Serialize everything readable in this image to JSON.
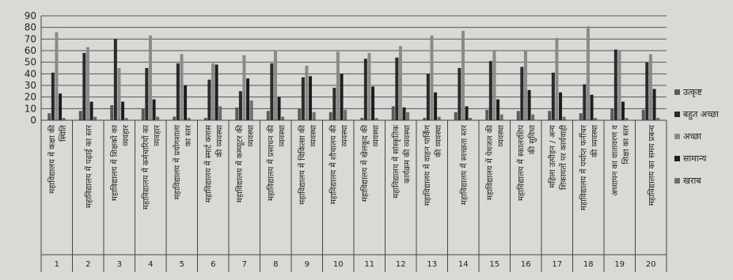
{
  "chart_data": {
    "type": "bar",
    "ylim": [
      0,
      90
    ],
    "yticks": [
      0,
      10,
      20,
      30,
      40,
      50,
      60,
      70,
      80,
      90
    ],
    "grid": true,
    "legend_position": "right",
    "numbers": [
      "1",
      "2",
      "3",
      "4",
      "5",
      "6",
      "7",
      "8",
      "9",
      "10",
      "11",
      "12",
      "13",
      "14",
      "15",
      "16",
      "17",
      "18",
      "19",
      "20"
    ],
    "categories": [
      [
        "महाविद्यालय में कक्षा की",
        "स्थिति"
      ],
      [
        "महाविद्यालय में पढ़ाई का स्तर"
      ],
      [
        "महाविद्यालय में शिक्षकों का",
        "व्यवहार"
      ],
      [
        "महाविद्यालय में कर्मचारियों का",
        "व्यवहार"
      ],
      [
        "महाविद्यालय में प्रयोगशाला",
        "का स्तर"
      ],
      [
        "महाविद्यालय में स्मार्ट क्लास",
        "की व्यवस्था"
      ],
      [
        "महाविद्यालय में कम्प्यूटर की",
        "व्यवस्था"
      ],
      [
        "महाविद्यालय में प्रसाधन की",
        "व्यवस्था"
      ],
      [
        "महाविद्यालय में चिकित्सा की",
        "व्यवस्था"
      ],
      [
        "महाविद्यालय में शौचालय की",
        "व्यवस्था"
      ],
      [
        "महाविद्यालय में खेलकूद की",
        "व्यवस्था"
      ],
      [
        "महाविद्यालय में सांस्कृतिक",
        "कार्यक्रम की व्यवस्था"
      ],
      [
        "महाविद्यालय में वाहन पार्किंग",
        "की व्यवस्था"
      ],
      [
        "महाविद्यालय में स्वच्छता स्तर"
      ],
      [
        "महाविद्यालय में पेयजल की",
        "व्यवस्था"
      ],
      [
        "महाविद्यालय में स्कालरशिप",
        "की सुविधा"
      ],
      [
        "महिला उत्पीड़न / अन्य",
        "शिकायतों पर कार्यवाही"
      ],
      [
        "महाविद्यालय में पर्याप्त फर्नीचर",
        "की व्यवस्था"
      ],
      [
        "अध्यापन का वातावरण व",
        "शिक्षा का स्तर"
      ],
      [
        "महाविद्यालय का समय प्रबन्ध"
      ]
    ],
    "series": [
      {
        "name": "उत्कृष्ट",
        "color": "#5a5a5a",
        "values": [
          6,
          8,
          13,
          10,
          3,
          2,
          11,
          8,
          10,
          7,
          2,
          12,
          2,
          7,
          9,
          8,
          8,
          6,
          10,
          9
        ]
      },
      {
        "name": "बहुत अच्छा",
        "color": "#2a2a2a",
        "values": [
          41,
          58,
          70,
          45,
          49,
          35,
          25,
          49,
          37,
          28,
          53,
          54,
          40,
          45,
          51,
          46,
          41,
          31,
          61,
          50
        ]
      },
      {
        "name": "अच्छा",
        "color": "#8a8a8a",
        "values": [
          76,
          63,
          45,
          73,
          57,
          49,
          56,
          60,
          47,
          59,
          58,
          64,
          73,
          77,
          60,
          60,
          71,
          81,
          60,
          57
        ]
      },
      {
        "name": "सामान्य",
        "color": "#1e1e1e",
        "values": [
          23,
          16,
          16,
          18,
          30,
          48,
          36,
          20,
          38,
          40,
          29,
          11,
          24,
          12,
          18,
          26,
          24,
          22,
          16,
          27
        ]
      },
      {
        "name": "खराब",
        "color": "#6e6e6e",
        "values": [
          2,
          3,
          2,
          3,
          2,
          12,
          17,
          3,
          7,
          9,
          2,
          7,
          3,
          2,
          5,
          5,
          3,
          2,
          2,
          2
        ]
      }
    ]
  }
}
